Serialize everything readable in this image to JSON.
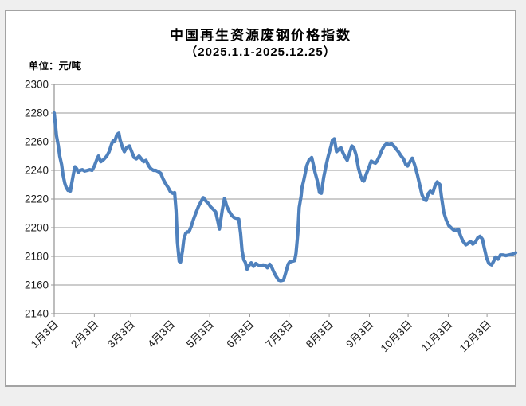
{
  "header": {
    "title": "中国再生资源废钢价格指数",
    "subtitle": "（2025.1.1-2025.12.25）",
    "unit_label": "单位：元/吨"
  },
  "chart_data": {
    "type": "line",
    "title": "中国再生资源废钢价格指数",
    "subtitle": "（2025.1.1-2025.12.25）",
    "ylabel": "单位：元/吨",
    "ylim": [
      2140,
      2300
    ],
    "y_ticks": [
      2140,
      2160,
      2180,
      2200,
      2220,
      2240,
      2260,
      2280,
      2300
    ],
    "x_tick_labels": [
      "1月3日",
      "2月3日",
      "3月3日",
      "4月3日",
      "5月3日",
      "6月3日",
      "7月3日",
      "8月3日",
      "9月3日",
      "10月3日",
      "11月3日",
      "12月3日"
    ],
    "x_tick_pos": [
      0,
      0.087,
      0.166,
      0.253,
      0.337,
      0.424,
      0.509,
      0.596,
      0.683,
      0.767,
      0.854,
      0.938
    ],
    "grid": "horizontal",
    "legend_position": "none",
    "line_color": "#4F81BD",
    "grid_color": "#9a9a9a",
    "axis_text_color": "#1a1a1a",
    "series": [
      {
        "name": "废钢价格指数",
        "points": [
          [
            0,
            2280
          ],
          [
            0.003,
            2271
          ],
          [
            0.005,
            2264
          ],
          [
            0.009,
            2257
          ],
          [
            0.012,
            2250
          ],
          [
            0.016,
            2244
          ],
          [
            0.019,
            2237
          ],
          [
            0.023,
            2231
          ],
          [
            0.026,
            2228
          ],
          [
            0.03,
            2226
          ],
          [
            0.031,
            2227
          ],
          [
            0.035,
            2225.5
          ],
          [
            0.038,
            2231
          ],
          [
            0.042,
            2238
          ],
          [
            0.045,
            2242.5
          ],
          [
            0.049,
            2241
          ],
          [
            0.052,
            2238.5
          ],
          [
            0.056,
            2240
          ],
          [
            0.061,
            2240.5
          ],
          [
            0.066,
            2239.5
          ],
          [
            0.072,
            2240
          ],
          [
            0.077,
            2240.5
          ],
          [
            0.082,
            2240
          ],
          [
            0.087,
            2243
          ],
          [
            0.093,
            2248
          ],
          [
            0.096,
            2250
          ],
          [
            0.101,
            2246
          ],
          [
            0.107,
            2247.5
          ],
          [
            0.114,
            2250
          ],
          [
            0.119,
            2253
          ],
          [
            0.124,
            2258
          ],
          [
            0.128,
            2261
          ],
          [
            0.131,
            2260
          ],
          [
            0.136,
            2265
          ],
          [
            0.14,
            2266
          ],
          [
            0.143,
            2261
          ],
          [
            0.149,
            2255
          ],
          [
            0.152,
            2253
          ],
          [
            0.157,
            2256
          ],
          [
            0.163,
            2257
          ],
          [
            0.168,
            2253
          ],
          [
            0.173,
            2249
          ],
          [
            0.178,
            2248
          ],
          [
            0.184,
            2250
          ],
          [
            0.189,
            2248
          ],
          [
            0.194,
            2246
          ],
          [
            0.199,
            2247
          ],
          [
            0.205,
            2243
          ],
          [
            0.21,
            2241
          ],
          [
            0.215,
            2240
          ],
          [
            0.22,
            2240
          ],
          [
            0.226,
            2239
          ],
          [
            0.231,
            2238
          ],
          [
            0.236,
            2234
          ],
          [
            0.241,
            2231
          ],
          [
            0.247,
            2228
          ],
          [
            0.252,
            2225
          ],
          [
            0.257,
            2224
          ],
          [
            0.261,
            2224.5
          ],
          [
            0.264,
            2212
          ],
          [
            0.267,
            2190
          ],
          [
            0.271,
            2176.5
          ],
          [
            0.274,
            2176
          ],
          [
            0.278,
            2184
          ],
          [
            0.281,
            2192
          ],
          [
            0.285,
            2196
          ],
          [
            0.288,
            2197
          ],
          [
            0.292,
            2197
          ],
          [
            0.297,
            2201
          ],
          [
            0.302,
            2206
          ],
          [
            0.308,
            2211
          ],
          [
            0.313,
            2215
          ],
          [
            0.318,
            2218
          ],
          [
            0.323,
            2221
          ],
          [
            0.329,
            2218.5
          ],
          [
            0.334,
            2217
          ],
          [
            0.339,
            2214.5
          ],
          [
            0.344,
            2213
          ],
          [
            0.35,
            2211
          ],
          [
            0.355,
            2204
          ],
          [
            0.358,
            2199
          ],
          [
            0.364,
            2212
          ],
          [
            0.369,
            2220.5
          ],
          [
            0.374,
            2215
          ],
          [
            0.379,
            2211.5
          ],
          [
            0.385,
            2208.5
          ],
          [
            0.39,
            2207
          ],
          [
            0.395,
            2206.5
          ],
          [
            0.4,
            2206
          ],
          [
            0.404,
            2196
          ],
          [
            0.407,
            2184
          ],
          [
            0.411,
            2177.5
          ],
          [
            0.414,
            2176
          ],
          [
            0.418,
            2171
          ],
          [
            0.423,
            2174
          ],
          [
            0.427,
            2175.5
          ],
          [
            0.432,
            2173
          ],
          [
            0.437,
            2175
          ],
          [
            0.442,
            2174
          ],
          [
            0.448,
            2173.5
          ],
          [
            0.453,
            2174
          ],
          [
            0.458,
            2173.5
          ],
          [
            0.462,
            2172
          ],
          [
            0.467,
            2174.5
          ],
          [
            0.472,
            2172
          ],
          [
            0.476,
            2169
          ],
          [
            0.481,
            2166
          ],
          [
            0.486,
            2163.5
          ],
          [
            0.491,
            2163
          ],
          [
            0.497,
            2163.5
          ],
          [
            0.502,
            2169
          ],
          [
            0.507,
            2174.5
          ],
          [
            0.51,
            2176
          ],
          [
            0.516,
            2176.5
          ],
          [
            0.521,
            2177
          ],
          [
            0.524,
            2182
          ],
          [
            0.528,
            2196
          ],
          [
            0.531,
            2214
          ],
          [
            0.535,
            2222
          ],
          [
            0.537,
            2228
          ],
          [
            0.54,
            2232
          ],
          [
            0.544,
            2238
          ],
          [
            0.547,
            2243
          ],
          [
            0.552,
            2247
          ],
          [
            0.558,
            2249
          ],
          [
            0.561,
            2245
          ],
          [
            0.565,
            2239
          ],
          [
            0.57,
            2233
          ],
          [
            0.575,
            2224.5
          ],
          [
            0.579,
            2224
          ],
          [
            0.584,
            2235
          ],
          [
            0.589,
            2243
          ],
          [
            0.594,
            2250
          ],
          [
            0.6,
            2257
          ],
          [
            0.603,
            2261
          ],
          [
            0.607,
            2262
          ],
          [
            0.612,
            2253
          ],
          [
            0.615,
            2254
          ],
          [
            0.621,
            2256
          ],
          [
            0.626,
            2252
          ],
          [
            0.631,
            2249
          ],
          [
            0.635,
            2247
          ],
          [
            0.64,
            2252
          ],
          [
            0.645,
            2257
          ],
          [
            0.649,
            2256
          ],
          [
            0.654,
            2251
          ],
          [
            0.659,
            2242
          ],
          [
            0.664,
            2236
          ],
          [
            0.668,
            2233
          ],
          [
            0.671,
            2232.5
          ],
          [
            0.677,
            2238
          ],
          [
            0.682,
            2242
          ],
          [
            0.687,
            2246.5
          ],
          [
            0.692,
            2245.5
          ],
          [
            0.696,
            2245
          ],
          [
            0.699,
            2246
          ],
          [
            0.705,
            2250
          ],
          [
            0.71,
            2254
          ],
          [
            0.715,
            2257
          ],
          [
            0.72,
            2258.5
          ],
          [
            0.726,
            2258
          ],
          [
            0.731,
            2258.5
          ],
          [
            0.736,
            2257
          ],
          [
            0.741,
            2255
          ],
          [
            0.747,
            2252.5
          ],
          [
            0.752,
            2250
          ],
          [
            0.757,
            2248
          ],
          [
            0.762,
            2244
          ],
          [
            0.766,
            2243
          ],
          [
            0.771,
            2246
          ],
          [
            0.776,
            2248.5
          ],
          [
            0.781,
            2244
          ],
          [
            0.787,
            2237
          ],
          [
            0.792,
            2230
          ],
          [
            0.797,
            2223
          ],
          [
            0.802,
            2219.5
          ],
          [
            0.806,
            2219
          ],
          [
            0.811,
            2224
          ],
          [
            0.815,
            2225.5
          ],
          [
            0.82,
            2224
          ],
          [
            0.825,
            2229
          ],
          [
            0.83,
            2232
          ],
          [
            0.836,
            2230
          ],
          [
            0.839,
            2222
          ],
          [
            0.844,
            2211
          ],
          [
            0.85,
            2205
          ],
          [
            0.855,
            2201.5
          ],
          [
            0.86,
            2200
          ],
          [
            0.865,
            2198.5
          ],
          [
            0.871,
            2198
          ],
          [
            0.876,
            2199
          ],
          [
            0.881,
            2194
          ],
          [
            0.886,
            2190.5
          ],
          [
            0.892,
            2188
          ],
          [
            0.897,
            2189
          ],
          [
            0.902,
            2190.5
          ],
          [
            0.907,
            2188.5
          ],
          [
            0.913,
            2190
          ],
          [
            0.918,
            2193
          ],
          [
            0.923,
            2194
          ],
          [
            0.928,
            2192
          ],
          [
            0.932,
            2186
          ],
          [
            0.937,
            2179
          ],
          [
            0.942,
            2175
          ],
          [
            0.948,
            2174
          ],
          [
            0.953,
            2177
          ],
          [
            0.956,
            2179.5
          ],
          [
            0.962,
            2178
          ],
          [
            0.967,
            2181
          ],
          [
            0.972,
            2181
          ],
          [
            0.979,
            2180.5
          ],
          [
            0.986,
            2181
          ],
          [
            0.993,
            2181.5
          ],
          [
            1,
            2182.5
          ]
        ]
      }
    ]
  }
}
